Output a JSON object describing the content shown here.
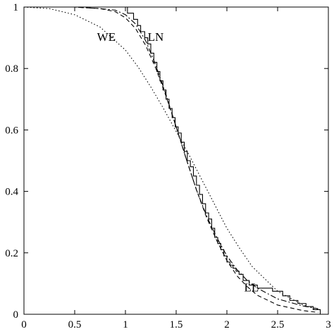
{
  "chart_data": {
    "type": "line",
    "title": "",
    "xlabel": "",
    "ylabel": "",
    "xlim": [
      0,
      3
    ],
    "ylim": [
      0,
      1
    ],
    "xticks": [
      "0",
      "0.5",
      "1",
      "1.5",
      "2",
      "2.5",
      "3"
    ],
    "yticks": [
      "0",
      "0.2",
      "0.4",
      "0.6",
      "0.8",
      "1"
    ],
    "grid": false,
    "legend": "none",
    "annotations": [
      {
        "text": "WE",
        "x": 0.72,
        "y": 0.89
      },
      {
        "text": "LN",
        "x": 1.22,
        "y": 0.89
      },
      {
        "text": "LL",
        "x": 2.17,
        "y": 0.075
      }
    ],
    "series": [
      {
        "style": "step",
        "color": "#000000",
        "x": [
          0.95,
          1.02,
          1.08,
          1.12,
          1.15,
          1.19,
          1.22,
          1.25,
          1.28,
          1.31,
          1.34,
          1.37,
          1.4,
          1.43,
          1.46,
          1.49,
          1.52,
          1.55,
          1.58,
          1.61,
          1.64,
          1.67,
          1.7,
          1.73,
          1.76,
          1.79,
          1.82,
          1.85,
          1.88,
          1.91,
          1.94,
          1.97,
          2.0,
          2.03,
          2.06,
          2.09,
          2.12,
          2.16,
          2.22,
          2.3,
          2.45,
          2.55,
          2.62,
          2.7,
          2.78,
          2.85,
          2.92
        ],
        "y": [
          1.0,
          0.98,
          0.96,
          0.94,
          0.92,
          0.9,
          0.88,
          0.85,
          0.82,
          0.79,
          0.76,
          0.73,
          0.7,
          0.67,
          0.64,
          0.61,
          0.59,
          0.56,
          0.53,
          0.5,
          0.48,
          0.45,
          0.42,
          0.39,
          0.36,
          0.33,
          0.31,
          0.28,
          0.25,
          0.23,
          0.21,
          0.19,
          0.17,
          0.16,
          0.15,
          0.14,
          0.13,
          0.11,
          0.095,
          0.085,
          0.075,
          0.06,
          0.045,
          0.035,
          0.025,
          0.015,
          0.0
        ]
      },
      {
        "style": "dotted",
        "color": "#000000",
        "x": [
          0.0,
          0.25,
          0.5,
          0.75,
          1.0,
          1.125,
          1.25,
          1.375,
          1.5,
          1.625,
          1.75,
          1.875,
          2.0,
          2.125,
          2.25,
          2.5,
          2.75,
          2.9
        ],
        "y": [
          1.0,
          0.995,
          0.975,
          0.935,
          0.86,
          0.805,
          0.74,
          0.67,
          0.595,
          0.52,
          0.44,
          0.36,
          0.28,
          0.215,
          0.155,
          0.075,
          0.03,
          0.015
        ]
      },
      {
        "style": "dashed",
        "color": "#000000",
        "x": [
          0.2,
          0.5,
          0.75,
          0.9,
          1.0,
          1.1,
          1.2,
          1.3,
          1.4,
          1.5,
          1.6,
          1.7,
          1.8,
          1.9,
          2.0,
          2.1,
          2.2,
          2.3,
          2.5,
          2.75,
          2.9
        ],
        "y": [
          1.0,
          1.0,
          0.995,
          0.985,
          0.965,
          0.93,
          0.875,
          0.8,
          0.71,
          0.61,
          0.505,
          0.405,
          0.315,
          0.24,
          0.175,
          0.125,
          0.09,
          0.062,
          0.03,
          0.012,
          0.006
        ]
      },
      {
        "style": "dash-dot",
        "color": "#000000",
        "x": [
          0.2,
          0.5,
          0.75,
          0.9,
          1.0,
          1.1,
          1.2,
          1.3,
          1.4,
          1.5,
          1.6,
          1.7,
          1.8,
          1.9,
          2.0,
          2.1,
          2.2,
          2.3,
          2.5,
          2.75,
          2.9
        ],
        "y": [
          1.0,
          1.0,
          0.995,
          0.99,
          0.975,
          0.945,
          0.89,
          0.81,
          0.715,
          0.61,
          0.505,
          0.405,
          0.32,
          0.25,
          0.19,
          0.145,
          0.11,
          0.085,
          0.05,
          0.027,
          0.018
        ]
      }
    ]
  }
}
